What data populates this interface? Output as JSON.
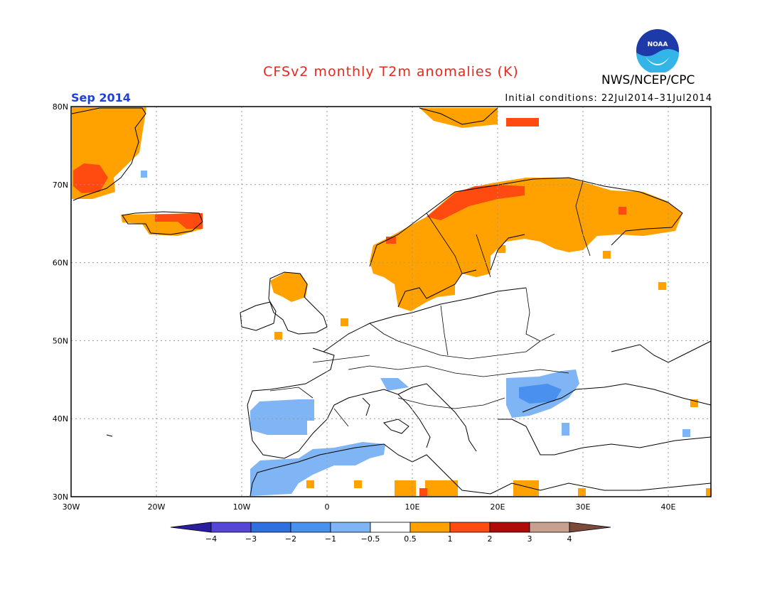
{
  "header": {
    "title": "CFSv2 monthly T2m anomalies (K)",
    "org": "NWS/NCEP/CPC",
    "period": "Sep 2014",
    "initial_conditions": "Initial conditions: 22Jul2014–31Jul2014",
    "logo_text": "NOAA"
  },
  "map": {
    "region": "Europe",
    "lon_range": [
      -30,
      45
    ],
    "lat_range": [
      30,
      80
    ],
    "lon_ticks": [
      "30W",
      "20W",
      "10W",
      "0",
      "10E",
      "20E",
      "30E",
      "40E"
    ],
    "lat_ticks": [
      "30N",
      "40N",
      "50N",
      "60N",
      "70N",
      "80N"
    ]
  },
  "colorbar": {
    "labels": [
      "−4",
      "−3",
      "−2",
      "−1",
      "−0.5",
      "0.5",
      "1",
      "2",
      "3",
      "4"
    ],
    "colors": [
      "#2a1e9e",
      "#5546d8",
      "#2f6fe0",
      "#4a90ee",
      "#7fb5f5",
      "#ffffff",
      "#ffa200",
      "#ff4a10",
      "#b00a0a",
      "#c7a090",
      "#7b4a3a"
    ]
  },
  "anomalies": {
    "note_colors": {
      "warm1": "#ffa200",
      "warm2": "#ff4a10",
      "cool1": "#7fb5f5",
      "cool2": "#4a90ee"
    }
  }
}
